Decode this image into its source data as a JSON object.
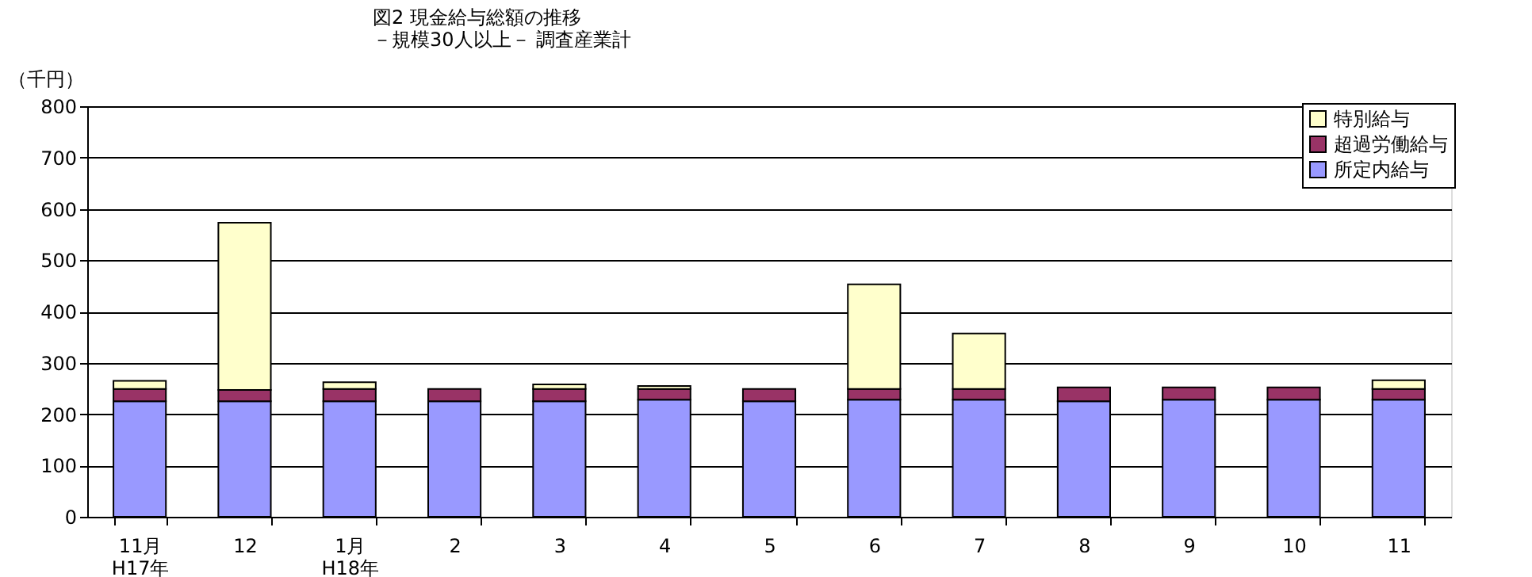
{
  "chart_data": {
    "type": "bar",
    "stacked": true,
    "title": [
      "図2  現金給与総額の推移",
      "－規模30人以上－  調査産業計"
    ],
    "ylabel": "（千円）",
    "categories": [
      "11月\nH17年",
      "12",
      "1月\nH18年",
      "2",
      "3",
      "4",
      "5",
      "6",
      "7",
      "8",
      "9",
      "10",
      "11"
    ],
    "series": [
      {
        "name": "所定内給与",
        "color": "#9999ff",
        "values": [
          225,
          225,
          225,
          225,
          225,
          228,
          225,
          228,
          228,
          225,
          228,
          228,
          228
        ]
      },
      {
        "name": "超過労働給与",
        "color": "#993366",
        "values": [
          24,
          22,
          24,
          24,
          24,
          21,
          24,
          21,
          21,
          27,
          24,
          24,
          21
        ]
      },
      {
        "name": "特別給与",
        "color": "#ffffcc",
        "values": [
          16,
          326,
          13,
          null,
          9,
          6,
          null,
          204,
          108,
          null,
          null,
          null,
          17
        ]
      }
    ],
    "ylim": [
      0,
      800
    ],
    "yticks": [
      0,
      100,
      200,
      300,
      400,
      500,
      600,
      700,
      800
    ],
    "grid": "y",
    "legend": "top right"
  }
}
